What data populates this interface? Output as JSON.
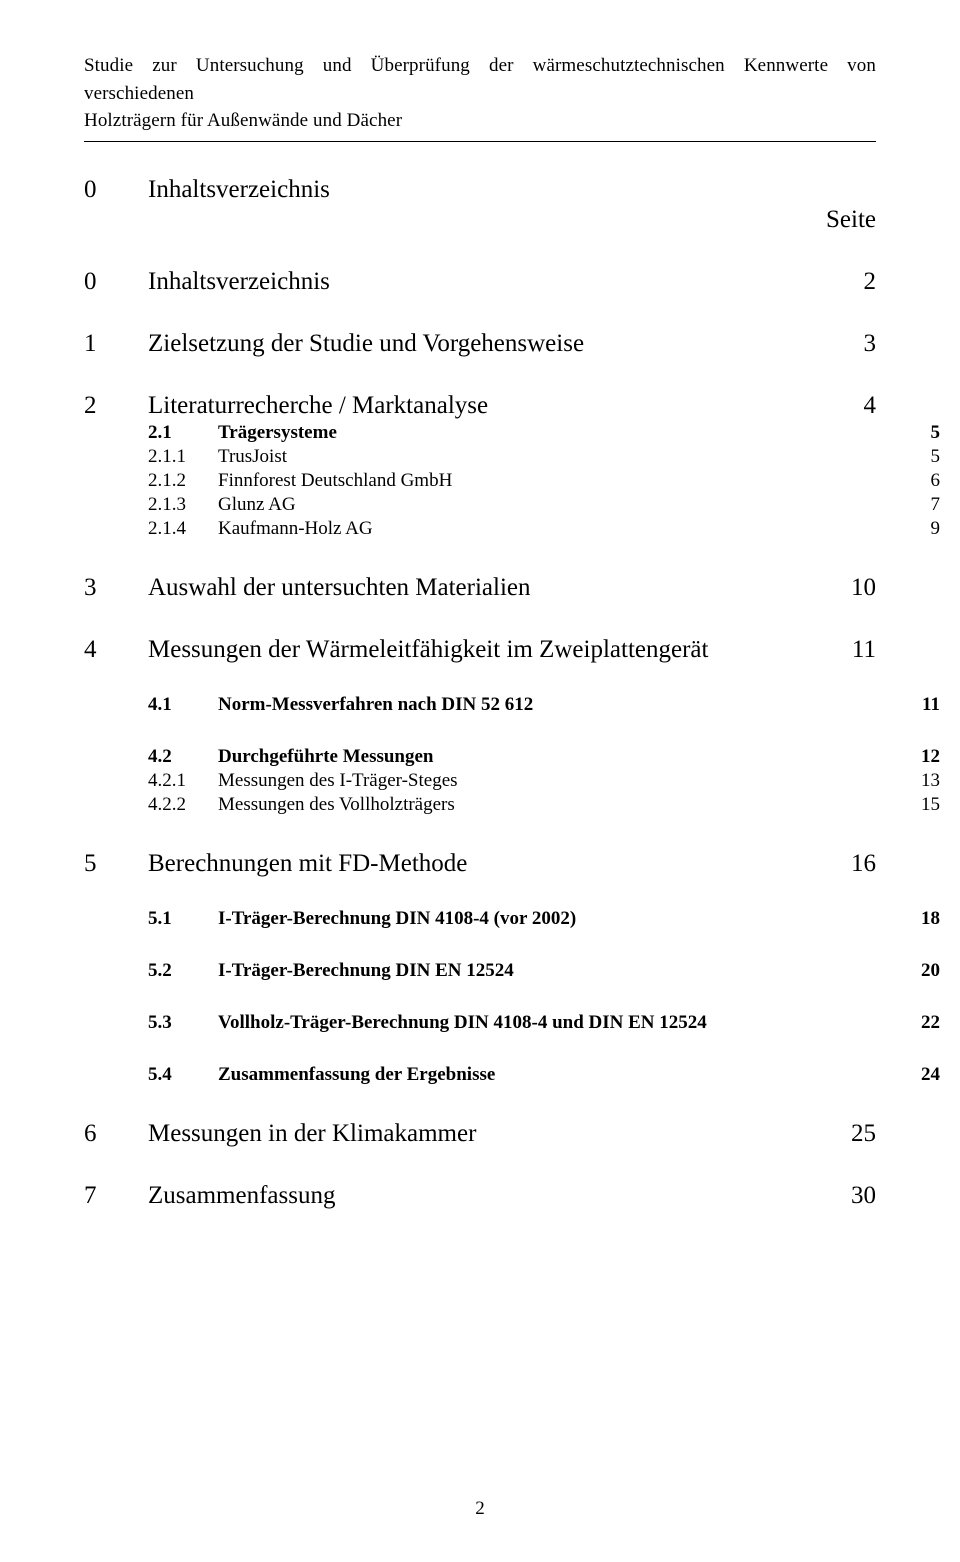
{
  "header": {
    "line1": "Studie zur Untersuchung und Überprüfung der wärmeschutztechnischen Kennwerte von verschiedenen",
    "line2": "Holzträgern für Außenwände und Dächer"
  },
  "toc": {
    "heading_num": "0",
    "heading_title": "Inhaltsverzeichnis",
    "seite_label": "Seite",
    "entries": [
      {
        "level": 1,
        "num": "0",
        "title": "Inhaltsverzeichnis",
        "page": "2"
      },
      {
        "level": 1,
        "num": "1",
        "title": "Zielsetzung der Studie und Vorgehensweise",
        "page": "3"
      },
      {
        "level": 1,
        "num": "2",
        "title": "Literaturrecherche / Marktanalyse",
        "page": "4"
      },
      {
        "level": 2,
        "num": "2.1",
        "title": "Trägersysteme",
        "page": "5",
        "compact": true
      },
      {
        "level": 3,
        "num": "2.1.1",
        "title": "TrusJoist",
        "page": "5"
      },
      {
        "level": 3,
        "num": "2.1.2",
        "title": "Finnforest Deutschland GmbH",
        "page": "6"
      },
      {
        "level": 3,
        "num": "2.1.3",
        "title": "Glunz AG",
        "page": "7"
      },
      {
        "level": 3,
        "num": "2.1.4",
        "title": "Kaufmann-Holz AG",
        "page": "9"
      },
      {
        "level": 1,
        "num": "3",
        "title": "Auswahl der untersuchten Materialien",
        "page": "10"
      },
      {
        "level": 1,
        "num": "4",
        "title": "Messungen der Wärmeleitfähigkeit im Zweiplattengerät",
        "page": "11"
      },
      {
        "level": 2,
        "num": "4.1",
        "title": "Norm-Messverfahren nach DIN 52 612",
        "page": "11"
      },
      {
        "level": 2,
        "num": "4.2",
        "title": "Durchgeführte Messungen",
        "page": "12"
      },
      {
        "level": 3,
        "num": "4.2.1",
        "title": "Messungen des I-Träger-Steges",
        "page": "13"
      },
      {
        "level": 3,
        "num": "4.2.2",
        "title": "Messungen des Vollholzträgers",
        "page": "15"
      },
      {
        "level": 1,
        "num": "5",
        "title": "Berechnungen mit FD-Methode",
        "page": "16"
      },
      {
        "level": 2,
        "num": "5.1",
        "title": "I-Träger-Berechnung DIN 4108-4 (vor 2002)",
        "page": "18"
      },
      {
        "level": 2,
        "num": "5.2",
        "title": "I-Träger-Berechnung DIN EN 12524",
        "page": "20"
      },
      {
        "level": 2,
        "num": "5.3",
        "title": "Vollholz-Träger-Berechnung DIN 4108-4 und DIN EN 12524",
        "page": "22"
      },
      {
        "level": 2,
        "num": "5.4",
        "title": "Zusammenfassung der Ergebnisse",
        "page": "24"
      },
      {
        "level": 1,
        "num": "6",
        "title": "Messungen in der Klimakammer",
        "page": "25"
      },
      {
        "level": 1,
        "num": "7",
        "title": "Zusammenfassung",
        "page": "30"
      }
    ]
  },
  "page_number": "2"
}
